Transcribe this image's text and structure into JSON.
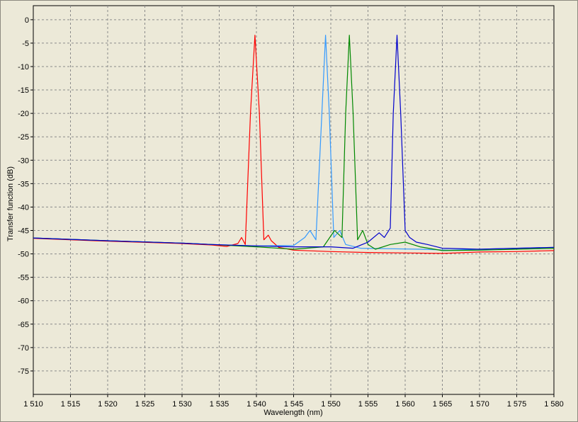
{
  "chart_data": {
    "type": "line",
    "xlabel": "Wavelength (nm)",
    "ylabel": "Transfer function (dB)",
    "xlim": [
      1510,
      1580
    ],
    "ylim": [
      -80,
      3
    ],
    "x_ticks": [
      1510,
      1515,
      1520,
      1525,
      1530,
      1535,
      1540,
      1545,
      1550,
      1555,
      1560,
      1565,
      1570,
      1575,
      1580
    ],
    "x_tick_labels": [
      "1 510",
      "1 515",
      "1 520",
      "1 525",
      "1 530",
      "1 535",
      "1 540",
      "1 545",
      "1 550",
      "1 555",
      "1 560",
      "1 565",
      "1 570",
      "1 575",
      "1 580"
    ],
    "y_ticks": [
      0,
      -5,
      -10,
      -15,
      -20,
      -25,
      -30,
      -35,
      -40,
      -45,
      -50,
      -55,
      -60,
      -65,
      -70,
      -75
    ],
    "y_tick_labels": [
      "0",
      "-5",
      "-10",
      "-15",
      "-20",
      "-25",
      "-30",
      "-35",
      "-40",
      "-45",
      "-50",
      "-55",
      "-60",
      "-65",
      "-70",
      "-75"
    ],
    "grid": true,
    "legend": "none",
    "series": [
      {
        "color": "#ff0000",
        "x": [
          1510,
          1520,
          1530,
          1534,
          1536,
          1537.5,
          1538,
          1538.5,
          1539.2,
          1539.8,
          1540.4,
          1541,
          1541.6,
          1542,
          1543,
          1545,
          1550,
          1555,
          1560,
          1565,
          1570,
          1575,
          1580
        ],
        "y": [
          -46.7,
          -47.3,
          -47.8,
          -48.1,
          -48.4,
          -47.8,
          -46.5,
          -48.0,
          -20.0,
          -3.3,
          -20.0,
          -47.0,
          -46.0,
          -47.2,
          -48.6,
          -49.2,
          -49.5,
          -49.7,
          -49.8,
          -49.9,
          -49.6,
          -49.5,
          -49.3
        ]
      },
      {
        "color": "#3399ff",
        "x": [
          1510,
          1520,
          1530,
          1534,
          1540,
          1545,
          1546.5,
          1547.2,
          1548.0,
          1548.8,
          1549.3,
          1549.8,
          1550.4,
          1551.2,
          1552,
          1554,
          1558,
          1562,
          1566,
          1570,
          1575,
          1580
        ],
        "y": [
          -46.6,
          -47.2,
          -47.7,
          -48.0,
          -48.3,
          -48.2,
          -46.5,
          -45.0,
          -47.0,
          -20.0,
          -3.3,
          -20.0,
          -46.5,
          -45.0,
          -48.0,
          -48.8,
          -48.9,
          -49.0,
          -49.2,
          -49.0,
          -48.8,
          -48.6
        ]
      },
      {
        "color": "#008800",
        "x": [
          1510,
          1520,
          1530,
          1534,
          1540,
          1545,
          1549,
          1550.5,
          1551.5,
          1552.0,
          1552.5,
          1553.0,
          1553.6,
          1554.3,
          1555,
          1556,
          1558,
          1560,
          1562,
          1565,
          1570,
          1575,
          1580
        ],
        "y": [
          -46.6,
          -47.2,
          -47.7,
          -48.0,
          -48.5,
          -49.0,
          -48.5,
          -45.0,
          -46.5,
          -20.0,
          -3.3,
          -20.0,
          -47.0,
          -45.0,
          -48.0,
          -49.0,
          -48.0,
          -47.5,
          -48.5,
          -49.3,
          -49.2,
          -49.0,
          -48.8
        ]
      },
      {
        "color": "#0000cc",
        "x": [
          1510,
          1520,
          1530,
          1534,
          1540,
          1545,
          1550,
          1553,
          1555,
          1556.5,
          1557.2,
          1558.0,
          1558.4,
          1558.9,
          1559.4,
          1560,
          1560.6,
          1561.5,
          1563,
          1565,
          1570,
          1575,
          1580
        ],
        "y": [
          -46.6,
          -47.2,
          -47.7,
          -48.0,
          -48.3,
          -48.5,
          -48.5,
          -48.8,
          -47.5,
          -45.5,
          -46.5,
          -44.5,
          -20.0,
          -3.3,
          -20.0,
          -45.0,
          -46.5,
          -47.5,
          -48.0,
          -48.8,
          -49.0,
          -48.8,
          -48.6
        ]
      }
    ]
  }
}
